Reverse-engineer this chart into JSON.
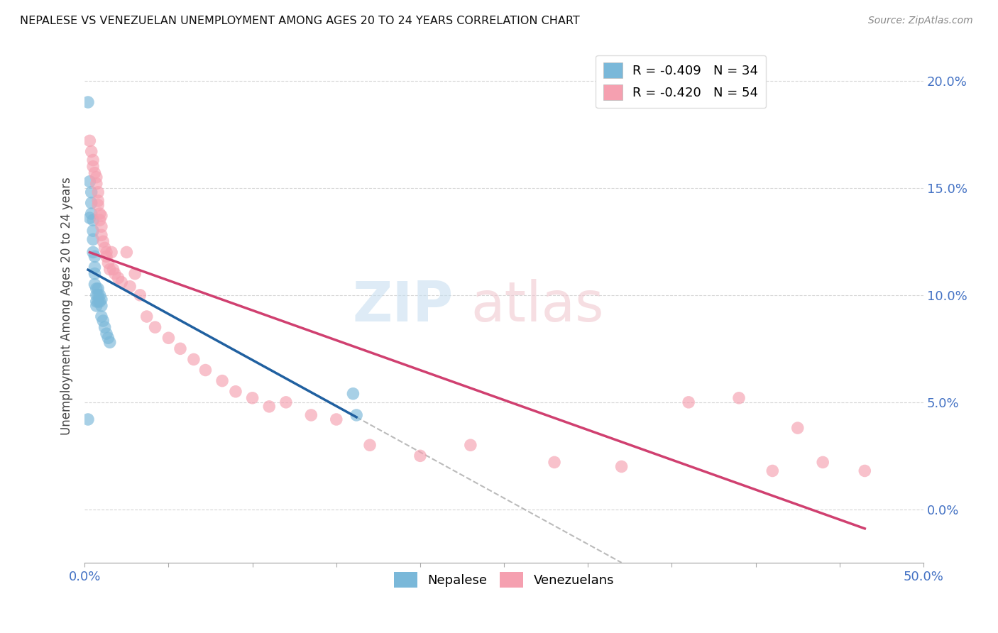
{
  "title": "NEPALESE VS VENEZUELAN UNEMPLOYMENT AMONG AGES 20 TO 24 YEARS CORRELATION CHART",
  "source": "Source: ZipAtlas.com",
  "ylabel": "Unemployment Among Ages 20 to 24 years",
  "xlim": [
    0.0,
    0.5
  ],
  "ylim": [
    -0.025,
    0.215
  ],
  "ytick_positions": [
    0.0,
    0.05,
    0.1,
    0.15,
    0.2
  ],
  "ytick_labels": [
    "0.0%",
    "5.0%",
    "10.0%",
    "15.0%",
    "20.0%"
  ],
  "xtick_positions": [
    0.0,
    0.05,
    0.1,
    0.15,
    0.2,
    0.25,
    0.3,
    0.35,
    0.4,
    0.45,
    0.5
  ],
  "xtick_labels": [
    "0.0%",
    "",
    "",
    "",
    "",
    "",
    "",
    "",
    "",
    "",
    "50.0%"
  ],
  "nepalese_color": "#7ab8d9",
  "venezuelan_color": "#f5a0b0",
  "nepalese_line_color": "#2060a0",
  "venezuelan_line_color": "#d04070",
  "dashed_line_color": "#aaaaaa",
  "legend_nepalese_R": "-0.409",
  "legend_nepalese_N": "34",
  "legend_venezuelan_R": "-0.420",
  "legend_venezuelan_N": "54",
  "nepalese_x": [
    0.002,
    0.002,
    0.003,
    0.003,
    0.004,
    0.004,
    0.004,
    0.005,
    0.005,
    0.005,
    0.005,
    0.006,
    0.006,
    0.006,
    0.006,
    0.007,
    0.007,
    0.007,
    0.007,
    0.008,
    0.008,
    0.008,
    0.009,
    0.009,
    0.01,
    0.01,
    0.01,
    0.011,
    0.012,
    0.013,
    0.014,
    0.015,
    0.16,
    0.162
  ],
  "nepalese_y": [
    0.19,
    0.042,
    0.153,
    0.136,
    0.148,
    0.143,
    0.138,
    0.135,
    0.13,
    0.126,
    0.12,
    0.118,
    0.113,
    0.11,
    0.105,
    0.103,
    0.1,
    0.097,
    0.095,
    0.103,
    0.1,
    0.097,
    0.1,
    0.097,
    0.098,
    0.095,
    0.09,
    0.088,
    0.085,
    0.082,
    0.08,
    0.078,
    0.054,
    0.044
  ],
  "venezuelan_x": [
    0.003,
    0.004,
    0.005,
    0.005,
    0.006,
    0.007,
    0.007,
    0.008,
    0.008,
    0.008,
    0.009,
    0.009,
    0.01,
    0.01,
    0.01,
    0.011,
    0.012,
    0.013,
    0.013,
    0.014,
    0.015,
    0.016,
    0.017,
    0.018,
    0.02,
    0.022,
    0.025,
    0.027,
    0.03,
    0.033,
    0.037,
    0.042,
    0.05,
    0.057,
    0.065,
    0.072,
    0.082,
    0.09,
    0.1,
    0.11,
    0.12,
    0.135,
    0.15,
    0.17,
    0.2,
    0.23,
    0.28,
    0.32,
    0.36,
    0.39,
    0.41,
    0.425,
    0.44,
    0.465
  ],
  "venezuelan_y": [
    0.172,
    0.167,
    0.163,
    0.16,
    0.157,
    0.155,
    0.152,
    0.148,
    0.144,
    0.142,
    0.138,
    0.135,
    0.137,
    0.132,
    0.128,
    0.125,
    0.122,
    0.12,
    0.118,
    0.115,
    0.112,
    0.12,
    0.112,
    0.11,
    0.108,
    0.106,
    0.12,
    0.104,
    0.11,
    0.1,
    0.09,
    0.085,
    0.08,
    0.075,
    0.07,
    0.065,
    0.06,
    0.055,
    0.052,
    0.048,
    0.05,
    0.044,
    0.042,
    0.03,
    0.025,
    0.03,
    0.022,
    0.02,
    0.05,
    0.052,
    0.018,
    0.038,
    0.022,
    0.018
  ]
}
